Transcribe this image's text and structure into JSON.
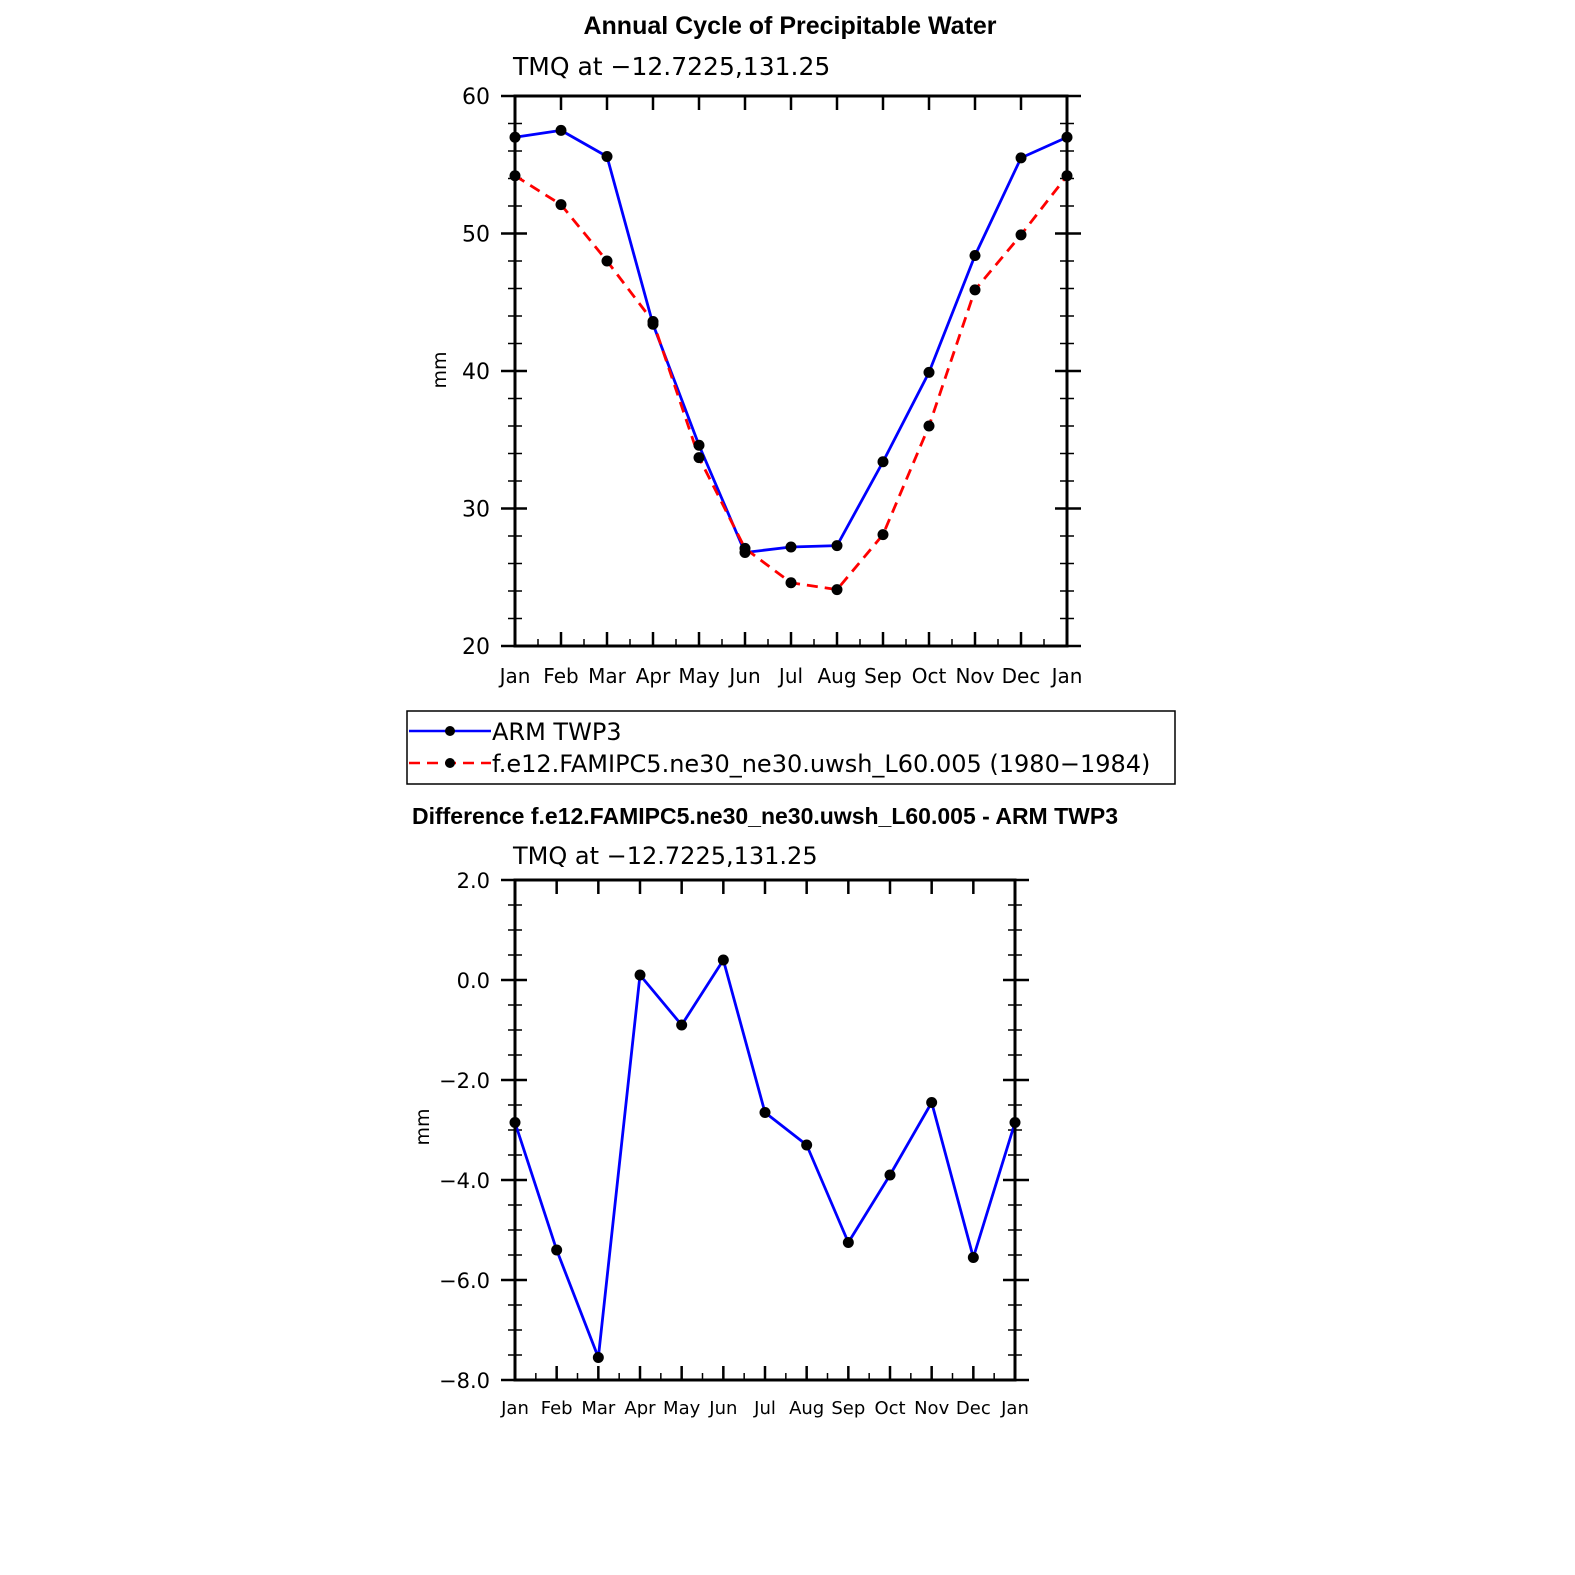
{
  "chart_data": [
    {
      "type": "line",
      "title": "Annual Cycle of Precipitable Water",
      "subtitle": "TMQ at −12.7225,131.25",
      "xlabel": "",
      "ylabel": "mm",
      "ylim": [
        20,
        60
      ],
      "yticks": [
        "20",
        "30",
        "40",
        "50",
        "60"
      ],
      "categories": [
        "Jan",
        "Feb",
        "Mar",
        "Apr",
        "May",
        "Jun",
        "Jul",
        "Aug",
        "Sep",
        "Oct",
        "Nov",
        "Dec",
        "Jan"
      ],
      "grid": false,
      "legend_position": "bottom",
      "series": [
        {
          "name": "ARM TWP3",
          "color": "#0000ff",
          "dash": "solid",
          "values": [
            57.0,
            57.5,
            55.6,
            43.4,
            34.6,
            26.8,
            27.2,
            27.3,
            33.4,
            39.9,
            48.4,
            55.5,
            57.0
          ]
        },
        {
          "name": "f.e12.FAMIPC5.ne30_ne30.uwsh_L60.005 (1980−1984)",
          "color": "#ff0000",
          "dash": "dashed",
          "values": [
            54.2,
            52.1,
            48.0,
            43.6,
            33.7,
            27.1,
            24.6,
            24.1,
            28.1,
            36.0,
            45.9,
            49.9,
            54.2
          ]
        }
      ]
    },
    {
      "type": "line",
      "title": "Difference f.e12.FAMIPC5.ne30_ne30.uwsh_L60.005 - ARM TWP3",
      "subtitle": "TMQ at −12.7225,131.25",
      "xlabel": "",
      "ylabel": "mm",
      "ylim": [
        -8,
        2
      ],
      "yticks": [
        "−8.0",
        "−6.0",
        "−4.0",
        "−2.0",
        "0.0",
        "2.0"
      ],
      "categories": [
        "Jan",
        "Feb",
        "Mar",
        "Apr",
        "May",
        "Jun",
        "Jul",
        "Aug",
        "Sep",
        "Oct",
        "Nov",
        "Dec",
        "Jan"
      ],
      "grid": false,
      "series": [
        {
          "color": "#0000ff",
          "dash": "solid",
          "values": [
            -2.85,
            -5.4,
            -7.55,
            0.1,
            -0.9,
            0.4,
            -2.65,
            -3.3,
            -5.25,
            -3.9,
            -2.45,
            -5.55,
            -2.85
          ]
        }
      ]
    }
  ]
}
